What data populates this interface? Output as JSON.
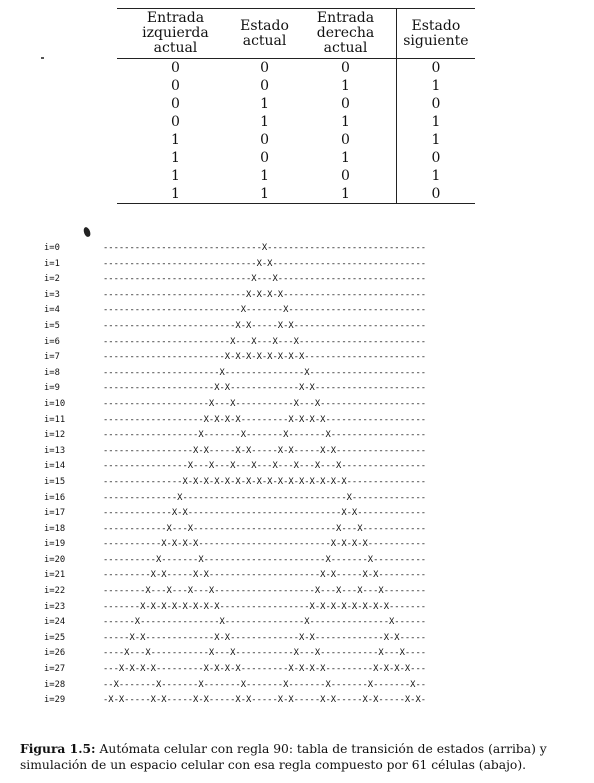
{
  "table": {
    "headers": [
      [
        "Entrada",
        "izquierda actual"
      ],
      [
        "Estado",
        "actual"
      ],
      [
        "Entrada",
        "derecha actual"
      ],
      [
        "Estado",
        "siguiente"
      ]
    ],
    "rows": [
      [
        "0",
        "0",
        "0",
        "0"
      ],
      [
        "0",
        "0",
        "1",
        "1"
      ],
      [
        "0",
        "1",
        "0",
        "0"
      ],
      [
        "0",
        "1",
        "1",
        "1"
      ],
      [
        "1",
        "0",
        "0",
        "1"
      ],
      [
        "1",
        "0",
        "1",
        "0"
      ],
      [
        "1",
        "1",
        "0",
        "1"
      ],
      [
        "1",
        "1",
        "1",
        "0"
      ]
    ]
  },
  "simulation": {
    "rows": [
      {
        "label": "i=0",
        "cells": "------------------------------X------------------------------"
      },
      {
        "label": "i=1",
        "cells": "-----------------------------X-X-----------------------------"
      },
      {
        "label": "i=2",
        "cells": "----------------------------X---X----------------------------"
      },
      {
        "label": "i=3",
        "cells": "---------------------------X-X-X-X---------------------------"
      },
      {
        "label": "i=4",
        "cells": "--------------------------X-------X--------------------------"
      },
      {
        "label": "i=5",
        "cells": "-------------------------X-X-----X-X-------------------------"
      },
      {
        "label": "i=6",
        "cells": "------------------------X---X---X---X------------------------"
      },
      {
        "label": "i=7",
        "cells": "-----------------------X-X-X-X-X-X-X-X-----------------------"
      },
      {
        "label": "i=8",
        "cells": "----------------------X---------------X----------------------"
      },
      {
        "label": "i=9",
        "cells": "---------------------X-X-------------X-X---------------------"
      },
      {
        "label": "i=10",
        "cells": "--------------------X---X-----------X---X--------------------"
      },
      {
        "label": "i=11",
        "cells": "-------------------X-X-X-X---------X-X-X-X-------------------"
      },
      {
        "label": "i=12",
        "cells": "------------------X-------X-------X-------X------------------"
      },
      {
        "label": "i=13",
        "cells": "-----------------X-X-----X-X-----X-X-----X-X-----------------"
      },
      {
        "label": "i=14",
        "cells": "----------------X---X---X---X---X---X---X---X----------------"
      },
      {
        "label": "i=15",
        "cells": "---------------X-X-X-X-X-X-X-X-X-X-X-X-X-X-X-X---------------"
      },
      {
        "label": "i=16",
        "cells": "--------------X-------------------------------X--------------"
      },
      {
        "label": "i=17",
        "cells": "-------------X-X-----------------------------X-X-------------"
      },
      {
        "label": "i=18",
        "cells": "------------X---X---------------------------X---X------------"
      },
      {
        "label": "i=19",
        "cells": "-----------X-X-X-X-------------------------X-X-X-X-----------"
      },
      {
        "label": "i=20",
        "cells": "----------X-------X-----------------------X-------X----------"
      },
      {
        "label": "i=21",
        "cells": "---------X-X-----X-X---------------------X-X-----X-X---------"
      },
      {
        "label": "i=22",
        "cells": "--------X---X---X---X-------------------X---X---X---X--------"
      },
      {
        "label": "i=23",
        "cells": "-------X-X-X-X-X-X-X-X-----------------X-X-X-X-X-X-X-X-------"
      },
      {
        "label": "i=24",
        "cells": "------X---------------X---------------X---------------X------"
      },
      {
        "label": "i=25",
        "cells": "-----X-X-------------X-X-------------X-X-------------X-X-----"
      },
      {
        "label": "i=26",
        "cells": "----X---X-----------X---X-----------X---X-----------X---X----"
      },
      {
        "label": "i=27",
        "cells": "---X-X-X-X---------X-X-X-X---------X-X-X-X---------X-X-X-X---"
      },
      {
        "label": "i=28",
        "cells": "--X-------X-------X-------X-------X-------X-------X-------X--"
      },
      {
        "label": "i=29",
        "cells": "-X-X-----X-X-----X-X-----X-X-----X-X-----X-X-----X-X-----X-X-"
      }
    ]
  },
  "caption": {
    "label": "Figura 1.5:",
    "text": " Autómata celular con regla 90: tabla de transición de estados (arriba) y simulación de un espacio celular con esa regla compuesto por 61 células (abajo)."
  }
}
